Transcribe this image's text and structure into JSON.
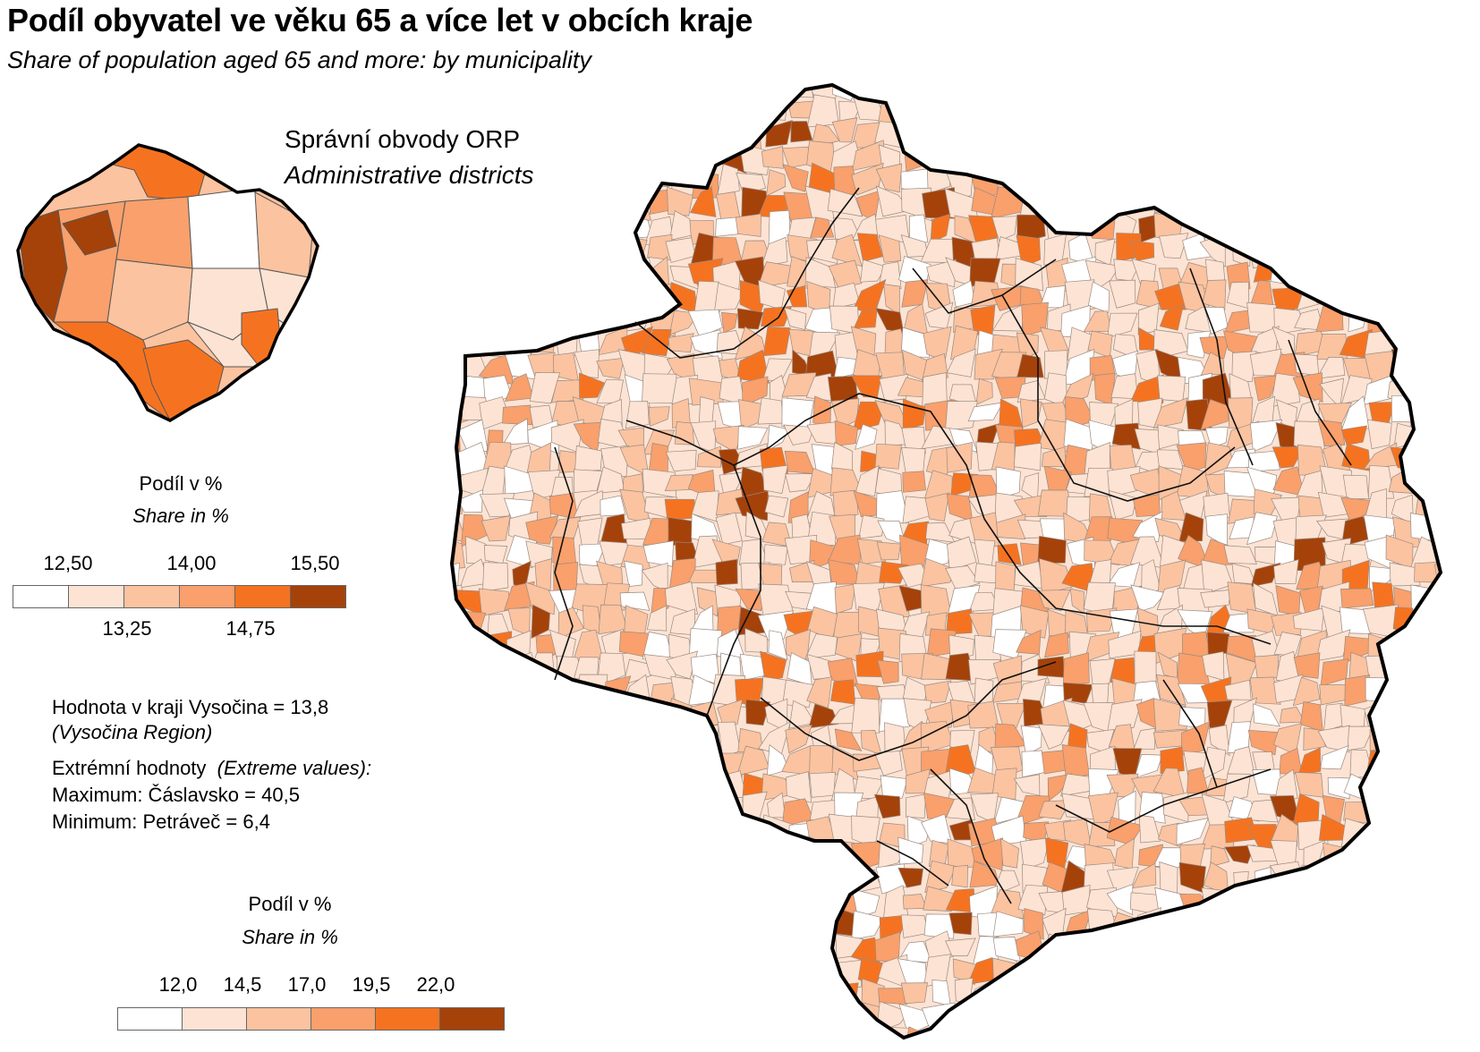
{
  "title": "Podíl obyvatel ve věku 65 a více let v obcích kraje",
  "subtitle": "Share of population aged 65 and more: by municipality",
  "inset": {
    "title": "Správní obvody  ORP",
    "subtitle": "Administrative districts"
  },
  "legend_districts": {
    "title": "Podíl v %",
    "subtitle": "Share in %",
    "ticks_top": [
      "12,50",
      "14,00",
      "15,50"
    ],
    "ticks_bottom": [
      "13,25",
      "14,75"
    ],
    "colors": [
      "#ffffff",
      "#fde3d3",
      "#fbc3a0",
      "#f9a06c",
      "#f57320",
      "#a5420a"
    ]
  },
  "legend_municipalities": {
    "title": "Podíl v %",
    "subtitle": "Share in %",
    "ticks": [
      "12,0",
      "14,5",
      "17,0",
      "19,5",
      "22,0"
    ],
    "colors": [
      "#ffffff",
      "#fde3d3",
      "#fbc3a0",
      "#f9a06c",
      "#f57320",
      "#a5420a"
    ]
  },
  "info": {
    "region_value": "Hodnota v kraji Vysočina = 13,8",
    "region_value_en": "(Vysočina Region)",
    "extremes_label": "Extrémní hodnoty",
    "extremes_label_en": "(Extreme values):",
    "maximum": "Maximum: Čáslavsko = 40,5",
    "minimum": "Minimum: Petráveč = 6,4"
  }
}
